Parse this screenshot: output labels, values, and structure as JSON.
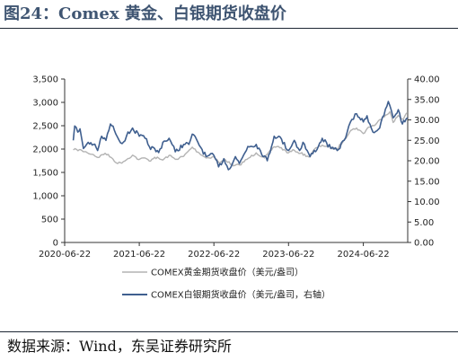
{
  "header": {
    "title": "图24：Comex 黄金、白银期货收盘价"
  },
  "footer": {
    "source": "数据来源：Wind，东吴证券研究所"
  },
  "chart_data": {
    "type": "line",
    "title": "",
    "xlabel": "",
    "ylabel": "",
    "xlim": [
      "2020-06-22",
      "2025-01-25"
    ],
    "x_ticks": [
      "2020-06-22",
      "2021-06-22",
      "2022-06-22",
      "2023-06-22",
      "2024-06-22"
    ],
    "y_left": {
      "lim": [
        0,
        3500
      ],
      "ticks": [
        "0",
        "500",
        "1,000",
        "1,500",
        "2,000",
        "2,500",
        "3,000",
        "3,500"
      ]
    },
    "y_right": {
      "lim": [
        0,
        40
      ],
      "ticks": [
        "0.00",
        "5.00",
        "10.00",
        "15.00",
        "20.00",
        "25.00",
        "30.00",
        "35.00",
        "40.00"
      ]
    },
    "grid": false,
    "legend_position": "bottom",
    "series": [
      {
        "name": "COMEX黄金期货收盘价（美元/盎司）",
        "axis": "left",
        "color": "#b3b3b3",
        "points": [
          [
            "2020-08-03",
            1980
          ],
          [
            "2020-08-20",
            1990
          ],
          [
            "2020-09-15",
            1965
          ],
          [
            "2020-10-10",
            1925
          ],
          [
            "2020-11-10",
            1880
          ],
          [
            "2020-12-01",
            1820
          ],
          [
            "2021-01-06",
            1910
          ],
          [
            "2021-02-05",
            1820
          ],
          [
            "2021-03-08",
            1690
          ],
          [
            "2021-04-05",
            1730
          ],
          [
            "2021-05-20",
            1870
          ],
          [
            "2021-06-20",
            1775
          ],
          [
            "2021-07-20",
            1810
          ],
          [
            "2021-08-10",
            1745
          ],
          [
            "2021-09-05",
            1825
          ],
          [
            "2021-10-15",
            1765
          ],
          [
            "2021-11-15",
            1865
          ],
          [
            "2021-12-15",
            1780
          ],
          [
            "2022-01-25",
            1845
          ],
          [
            "2022-03-08",
            2040
          ],
          [
            "2022-04-05",
            1935
          ],
          [
            "2022-05-15",
            1810
          ],
          [
            "2022-06-22",
            1835
          ],
          [
            "2022-07-20",
            1700
          ],
          [
            "2022-08-15",
            1780
          ],
          [
            "2022-09-25",
            1640
          ],
          [
            "2022-10-25",
            1660
          ],
          [
            "2022-12-01",
            1780
          ],
          [
            "2023-01-15",
            1920
          ],
          [
            "2023-02-25",
            1810
          ],
          [
            "2023-04-13",
            2050
          ],
          [
            "2023-05-04",
            2055
          ],
          [
            "2023-06-22",
            1920
          ],
          [
            "2023-07-20",
            1975
          ],
          [
            "2023-08-20",
            1910
          ],
          [
            "2023-10-05",
            1830
          ],
          [
            "2023-10-27",
            2000
          ],
          [
            "2023-12-04",
            2085
          ],
          [
            "2024-01-15",
            2030
          ],
          [
            "2024-02-14",
            2000
          ],
          [
            "2024-03-20",
            2200
          ],
          [
            "2024-04-20",
            2395
          ],
          [
            "2024-05-20",
            2450
          ],
          [
            "2024-06-22",
            2330
          ],
          [
            "2024-07-17",
            2470
          ],
          [
            "2024-08-20",
            2520
          ],
          [
            "2024-09-25",
            2690
          ],
          [
            "2024-10-30",
            2800
          ],
          [
            "2024-11-15",
            2570
          ],
          [
            "2024-12-10",
            2720
          ],
          [
            "2024-12-30",
            2640
          ],
          [
            "2025-01-24",
            2780
          ]
        ]
      },
      {
        "name": "COMEX白银期货收盘价（美元/盎司，右轴）",
        "axis": "right",
        "color": "#3f5f8f",
        "points": [
          [
            "2020-08-03",
            25.0
          ],
          [
            "2020-08-10",
            28.5
          ],
          [
            "2020-08-25",
            27.0
          ],
          [
            "2020-09-05",
            27.8
          ],
          [
            "2020-09-22",
            23.0
          ],
          [
            "2020-10-15",
            24.5
          ],
          [
            "2020-11-10",
            24.0
          ],
          [
            "2020-11-30",
            22.5
          ],
          [
            "2020-12-20",
            26.0
          ],
          [
            "2021-01-10",
            25.0
          ],
          [
            "2021-02-01",
            29.0
          ],
          [
            "2021-02-20",
            27.5
          ],
          [
            "2021-03-30",
            24.2
          ],
          [
            "2021-04-20",
            26.0
          ],
          [
            "2021-05-20",
            28.0
          ],
          [
            "2021-06-22",
            26.0
          ],
          [
            "2021-07-20",
            25.5
          ],
          [
            "2021-08-10",
            23.5
          ],
          [
            "2021-09-25",
            22.0
          ],
          [
            "2021-10-15",
            24.5
          ],
          [
            "2021-11-15",
            25.5
          ],
          [
            "2021-12-15",
            22.2
          ],
          [
            "2022-01-25",
            24.0
          ],
          [
            "2022-02-20",
            24.0
          ],
          [
            "2022-03-08",
            26.5
          ],
          [
            "2022-04-05",
            24.5
          ],
          [
            "2022-05-15",
            21.0
          ],
          [
            "2022-06-22",
            21.3
          ],
          [
            "2022-07-15",
            18.5
          ],
          [
            "2022-08-10",
            20.5
          ],
          [
            "2022-09-01",
            17.8
          ],
          [
            "2022-10-05",
            21.0
          ],
          [
            "2022-10-25",
            19.3
          ],
          [
            "2022-12-05",
            23.5
          ],
          [
            "2023-01-15",
            24.0
          ],
          [
            "2023-03-10",
            20.0
          ],
          [
            "2023-04-13",
            26.0
          ],
          [
            "2023-05-05",
            26.0
          ],
          [
            "2023-06-22",
            22.5
          ],
          [
            "2023-07-20",
            25.0
          ],
          [
            "2023-08-15",
            22.5
          ],
          [
            "2023-09-01",
            24.5
          ],
          [
            "2023-10-05",
            21.0
          ],
          [
            "2023-11-15",
            23.5
          ],
          [
            "2023-12-04",
            25.5
          ],
          [
            "2024-01-15",
            23.0
          ],
          [
            "2024-02-15",
            22.5
          ],
          [
            "2024-03-20",
            25.0
          ],
          [
            "2024-04-12",
            28.5
          ],
          [
            "2024-05-20",
            31.5
          ],
          [
            "2024-06-22",
            29.5
          ],
          [
            "2024-07-10",
            31.0
          ],
          [
            "2024-08-08",
            27.0
          ],
          [
            "2024-09-10",
            28.0
          ],
          [
            "2024-10-22",
            34.5
          ],
          [
            "2024-11-15",
            30.5
          ],
          [
            "2024-12-10",
            32.5
          ],
          [
            "2024-12-30",
            29.0
          ],
          [
            "2025-01-24",
            30.5
          ]
        ]
      }
    ]
  }
}
